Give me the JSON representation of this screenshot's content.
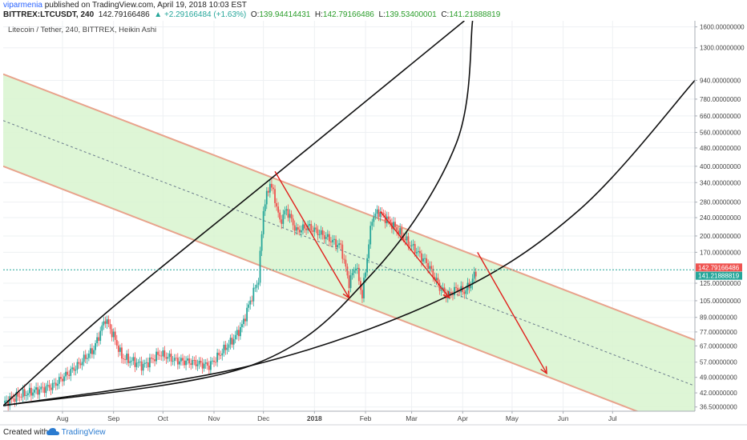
{
  "header": {
    "author": "viparmenia",
    "published": " published on TradingView.com, April 19, 2018 10:03 EST",
    "symbol_line": {
      "symbol": "BITTREX:LTCUSDT, 240",
      "last": "142.79166486",
      "change": "▲ +2.29166484 (+1.63%)",
      "o_label": "O:",
      "o_value": "139.94414431",
      "h_label": "H:",
      "h_value": "142.79166486",
      "l_label": "L:",
      "l_value": "139.53400001",
      "c_label": "C:",
      "c_value": "141.21888819"
    }
  },
  "footer": {
    "created_with": "Created with",
    "logo_text": "TradingView"
  },
  "chart_data": {
    "type": "line",
    "title": "Litecoin / Tether, 240, BITTREX, Heikin Ashi",
    "y_scale": "log",
    "ylim": [
      35,
      1700
    ],
    "y_ticks": [
      "1600.00000000",
      "1300.00000000",
      "940.00000000",
      "780.00000000",
      "660.00000000",
      "560.00000000",
      "480.00000000",
      "400.00000000",
      "340.00000000",
      "280.00000000",
      "240.00000000",
      "200.00000000",
      "170.00000000",
      "125.00000000",
      "105.00000000",
      "89.00000000",
      "77.00000000",
      "67.00000000",
      "57.00000000",
      "49.00000000",
      "42.00000000",
      "36.50000000"
    ],
    "y_tick_values": [
      1600,
      1300,
      940,
      780,
      660,
      560,
      480,
      400,
      340,
      280,
      240,
      200,
      170,
      125,
      105,
      89,
      77,
      67,
      57,
      49,
      42,
      36.5
    ],
    "x_ticks": [
      "Aug",
      "Sep",
      "Oct",
      "Nov",
      "Dec",
      "2018",
      "Feb",
      "Mar",
      "Apr",
      "May",
      "Jun",
      "Jul"
    ],
    "x_tick_days": [
      36,
      67,
      97,
      128,
      158,
      189,
      220,
      248,
      279,
      309,
      340,
      370
    ],
    "x_range_days": [
      0,
      420
    ],
    "price_labels": {
      "last": "142.79166486",
      "close": "141.21888819"
    },
    "price_label_values": [
      142.79166486,
      141.21888819
    ],
    "series": [
      {
        "values_desc": "price",
        "days": [
          0,
          10,
          20,
          30,
          45,
          55,
          62,
          67,
          72,
          80,
          85,
          95,
          105,
          115,
          125,
          130,
          140,
          145,
          150,
          155,
          158,
          162,
          165,
          168,
          172,
          178,
          185,
          195,
          205,
          210,
          214,
          218,
          224,
          228,
          232,
          240,
          245,
          250,
          258,
          265,
          270,
          275,
          280,
          284,
          287
        ],
        "values": [
          38,
          41,
          43,
          45,
          55,
          65,
          88,
          74,
          60,
          57,
          55,
          62,
          58,
          57,
          55,
          60,
          72,
          82,
          105,
          130,
          260,
          340,
          290,
          230,
          260,
          210,
          220,
          200,
          180,
          125,
          150,
          110,
          240,
          255,
          240,
          210,
          190,
          175,
          150,
          120,
          110,
          118,
          115,
          125,
          140
        ]
      }
    ],
    "channel": {
      "upper": [
        {
          "day": 0,
          "value": 1000
        },
        {
          "day": 420,
          "value": 71
        }
      ],
      "middle": [
        {
          "day": 0,
          "value": 630
        },
        {
          "day": 420,
          "value": 45
        }
      ],
      "lower": [
        {
          "day": 0,
          "value": 400
        },
        {
          "day": 420,
          "value": 28
        }
      ]
    },
    "arrows": [
      {
        "from": {
          "day": 165,
          "value": 380
        },
        "to": {
          "day": 210,
          "value": 108
        }
      },
      {
        "from": {
          "day": 229,
          "value": 255
        },
        "to": {
          "day": 271,
          "value": 108
        }
      },
      {
        "from": {
          "day": 288,
          "value": 170
        },
        "to": {
          "day": 330,
          "value": 51
        }
      }
    ],
    "curves": [
      {
        "points": [
          {
            "day": 0,
            "value": 37
          },
          {
            "day": 64,
            "value": 95
          },
          {
            "day": 168,
            "value": 380
          },
          {
            "day": 280,
            "value": 1700
          }
        ]
      },
      {
        "points": [
          {
            "day": 0,
            "value": 37
          },
          {
            "day": 150,
            "value": 55
          },
          {
            "day": 225,
            "value": 140
          },
          {
            "day": 275,
            "value": 500
          },
          {
            "day": 285,
            "value": 1700
          }
        ]
      },
      {
        "points": [
          {
            "day": 0,
            "value": 37
          },
          {
            "day": 150,
            "value": 55
          },
          {
            "day": 270,
            "value": 110
          },
          {
            "day": 350,
            "value": 260
          },
          {
            "day": 420,
            "value": 940
          }
        ]
      }
    ],
    "colors": {
      "channel_fill": "#d8f5cf",
      "channel_border": "#e8a38c",
      "arrows": "#e0201c",
      "curves": "#111111",
      "up": "#26a69a",
      "down": "#ef5350",
      "last_label": "#ef5350",
      "close_label": "#26a69a"
    },
    "grid": true,
    "legend": "top-left"
  }
}
